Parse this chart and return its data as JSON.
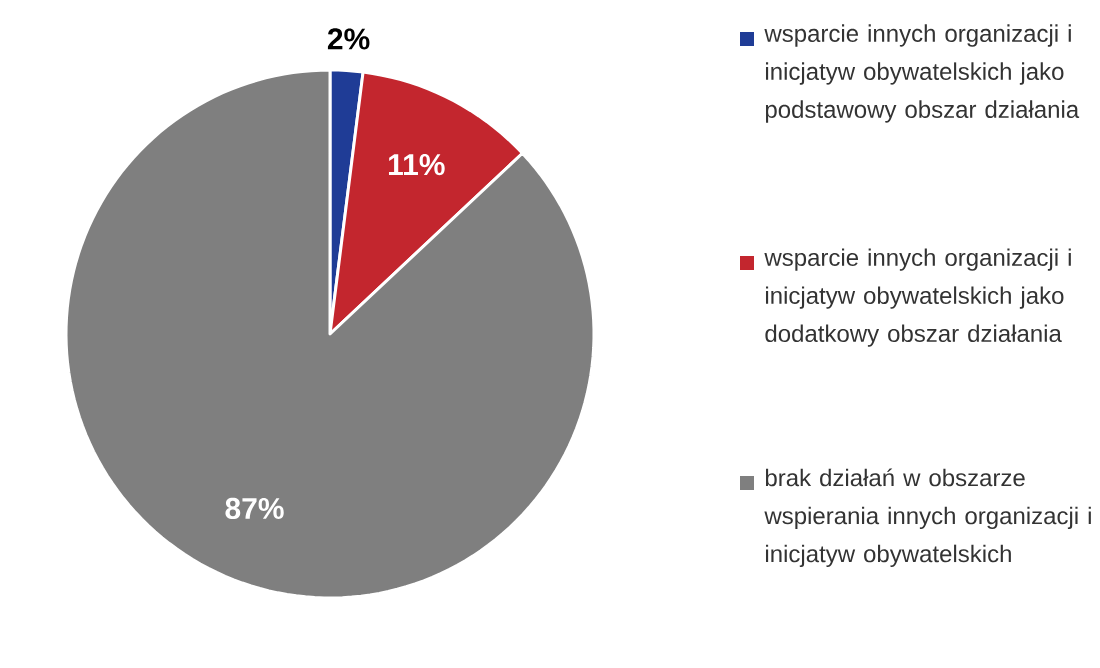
{
  "chart_data": {
    "type": "pie",
    "categories": [
      "wsparcie innych organizacji i inicjatyw obywatelskich jako podstawowy obszar działania",
      "wsparcie innych organizacji i inicjatyw obywatelskich jako dodatkowy obszar działania",
      "brak działań w obszarze wspierania innych organizacji i inicjatyw obywatelskich"
    ],
    "values": [
      2,
      11,
      87
    ],
    "colors": [
      "#1f3c96",
      "#c3262e",
      "#7f7f7f"
    ],
    "value_labels": [
      "2%",
      "11%",
      "87%"
    ],
    "legend": "right"
  }
}
